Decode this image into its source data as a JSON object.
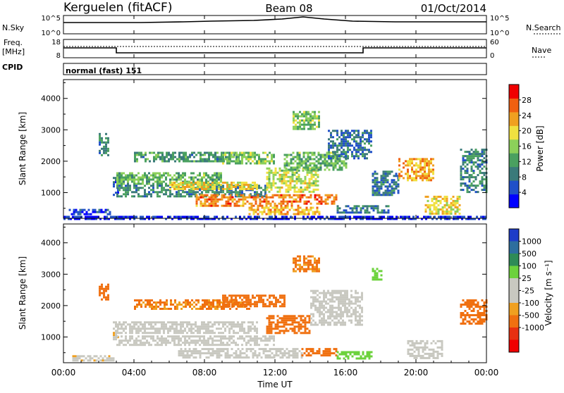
{
  "header": {
    "station": "Kerguelen (fitACF)",
    "beam": "Beam 08",
    "date": "01/Oct/2014"
  },
  "panels": {
    "nsky": {
      "label": "N.Sky",
      "left_ticks": [
        "10^5",
        "10^0"
      ],
      "right_ticks": [
        "10^5",
        "10^0"
      ],
      "right_label": "N.Search"
    },
    "freq": {
      "label_line1": "Freq.",
      "label_line2": "[MHz]",
      "left_ticks": [
        "18",
        "8"
      ],
      "right_ticks": [
        "60",
        "0"
      ],
      "right_label": "Nave"
    },
    "cpid": {
      "label": "CPID",
      "value": "normal (fast) 151"
    }
  },
  "time_axis": {
    "label": "Time UT",
    "ticks": [
      "00:00",
      "04:00",
      "08:00",
      "12:00",
      "16:00",
      "20:00",
      "00:00"
    ]
  },
  "colors": {
    "power_scale": [
      "#0000ff",
      "#2050c8",
      "#3a7a7a",
      "#4aa060",
      "#8cd05a",
      "#f0e040",
      "#f0a020",
      "#f06010",
      "#f00000"
    ],
    "velocity_scale": [
      "#1e3cc8",
      "#2d6e9e",
      "#2e8b57",
      "#6cd23c",
      "#c8c8c0",
      "#c8c8c0",
      "#f0a020",
      "#f07010",
      "#e83010",
      "#f00000"
    ]
  },
  "chart_data": [
    {
      "type": "heatmap",
      "name": "power",
      "x_unit": "hours UT",
      "xlim": [
        0,
        24
      ],
      "ylabel": "Slant Range [km]",
      "ylim": [
        180,
        4600
      ],
      "yticks": [
        1000,
        2000,
        3000,
        4000
      ],
      "colorbar": {
        "label": "Power [dB]",
        "range": [
          0,
          32
        ],
        "ticks": [
          4,
          8,
          12,
          16,
          20,
          24,
          28
        ]
      },
      "regions": [
        {
          "t0": 0.0,
          "t1": 24.0,
          "r0": 180,
          "r1": 260,
          "v": 3
        },
        {
          "t0": 0.3,
          "t1": 2.8,
          "r0": 300,
          "r1": 480,
          "v": 5
        },
        {
          "t0": 2.0,
          "t1": 2.5,
          "r0": 2200,
          "r1": 2900,
          "v": 10
        },
        {
          "t0": 2.8,
          "t1": 3.1,
          "r0": 900,
          "r1": 1500,
          "v": 7
        },
        {
          "t0": 3.0,
          "t1": 9.0,
          "r0": 1300,
          "r1": 1650,
          "v": 14
        },
        {
          "t0": 3.0,
          "t1": 11.5,
          "r0": 900,
          "r1": 1250,
          "v": 10
        },
        {
          "t0": 4.0,
          "t1": 10.0,
          "r0": 2000,
          "r1": 2300,
          "v": 11
        },
        {
          "t0": 6.0,
          "t1": 11.0,
          "r0": 1100,
          "r1": 1350,
          "v": 20
        },
        {
          "t0": 7.5,
          "t1": 13.5,
          "r0": 550,
          "r1": 950,
          "v": 25
        },
        {
          "t0": 10.5,
          "t1": 14.5,
          "r0": 300,
          "r1": 550,
          "v": 22
        },
        {
          "t0": 9.0,
          "t1": 12.0,
          "r0": 1900,
          "r1": 2300,
          "v": 15
        },
        {
          "t0": 11.5,
          "t1": 14.5,
          "r0": 1050,
          "r1": 1800,
          "v": 18
        },
        {
          "t0": 13.5,
          "t1": 15.5,
          "r0": 650,
          "r1": 950,
          "v": 26
        },
        {
          "t0": 12.5,
          "t1": 16.0,
          "r0": 1700,
          "r1": 2300,
          "v": 14
        },
        {
          "t0": 13.0,
          "t1": 14.5,
          "r0": 3000,
          "r1": 3600,
          "v": 15
        },
        {
          "t0": 15.0,
          "t1": 17.5,
          "r0": 2100,
          "r1": 3000,
          "v": 8
        },
        {
          "t0": 15.5,
          "t1": 18.5,
          "r0": 350,
          "r1": 600,
          "v": 9
        },
        {
          "t0": 17.5,
          "t1": 19.0,
          "r0": 900,
          "r1": 1700,
          "v": 8
        },
        {
          "t0": 19.0,
          "t1": 21.0,
          "r0": 1400,
          "r1": 2100,
          "v": 23
        },
        {
          "t0": 20.5,
          "t1": 22.5,
          "r0": 350,
          "r1": 900,
          "v": 20
        },
        {
          "t0": 22.5,
          "t1": 24.0,
          "r0": 1000,
          "r1": 2400,
          "v": 10
        }
      ]
    },
    {
      "type": "heatmap",
      "name": "velocity",
      "x_unit": "hours UT",
      "xlim": [
        0,
        24
      ],
      "ylabel": "Slant Range [km]",
      "ylim": [
        180,
        4600
      ],
      "yticks": [
        1000,
        2000,
        3000,
        4000
      ],
      "colorbar": {
        "label": "Velocity [m s⁻¹]",
        "ticks": [
          1000,
          500,
          100,
          25,
          -25,
          -100,
          -500,
          -1000
        ]
      },
      "regions": [
        {
          "t0": 0.5,
          "t1": 2.8,
          "r0": 220,
          "r1": 420,
          "v": -10
        },
        {
          "t0": 2.0,
          "t1": 2.5,
          "r0": 2200,
          "r1": 2700,
          "v": -200
        },
        {
          "t0": 2.8,
          "t1": 3.1,
          "r0": 900,
          "r1": 1500,
          "v": -10
        },
        {
          "t0": 3.0,
          "t1": 11.0,
          "r0": 1100,
          "r1": 1500,
          "v": 0
        },
        {
          "t0": 3.0,
          "t1": 12.0,
          "r0": 750,
          "r1": 1050,
          "v": 0
        },
        {
          "t0": 4.0,
          "t1": 10.5,
          "r0": 1900,
          "r1": 2200,
          "v": -120
        },
        {
          "t0": 6.5,
          "t1": 13.5,
          "r0": 380,
          "r1": 650,
          "v": 0
        },
        {
          "t0": 9.0,
          "t1": 12.5,
          "r0": 2000,
          "r1": 2350,
          "v": -300
        },
        {
          "t0": 11.5,
          "t1": 14.0,
          "r0": 1150,
          "r1": 1700,
          "v": -200
        },
        {
          "t0": 13.5,
          "t1": 15.5,
          "r0": 400,
          "r1": 650,
          "v": -150
        },
        {
          "t0": 14.0,
          "t1": 17.0,
          "r0": 1400,
          "r1": 2500,
          "v": 0
        },
        {
          "t0": 13.0,
          "t1": 14.5,
          "r0": 3100,
          "r1": 3600,
          "v": -120
        },
        {
          "t0": 15.5,
          "t1": 17.5,
          "r0": 300,
          "r1": 550,
          "v": 60
        },
        {
          "t0": 17.5,
          "t1": 18.0,
          "r0": 2800,
          "r1": 3200,
          "v": 60
        },
        {
          "t0": 19.5,
          "t1": 21.5,
          "r0": 350,
          "r1": 900,
          "v": 0
        },
        {
          "t0": 22.5,
          "t1": 24.0,
          "r0": 1400,
          "r1": 2200,
          "v": -300
        }
      ]
    }
  ]
}
